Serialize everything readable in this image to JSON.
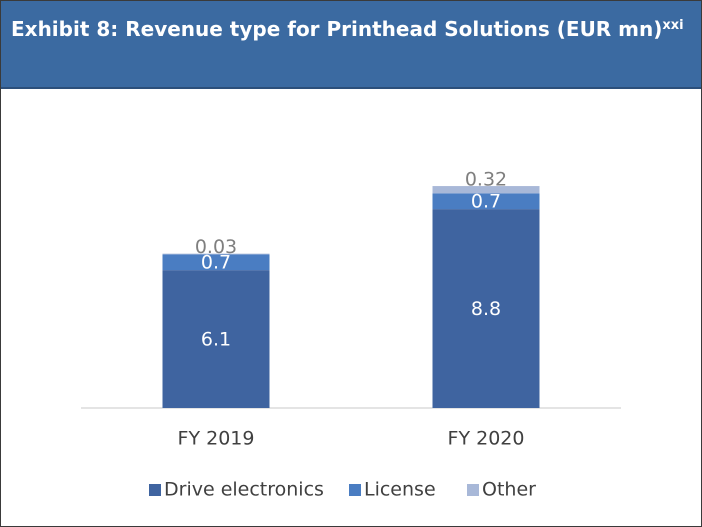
{
  "chart_data": {
    "type": "stacked_bar",
    "title": "Exhibit 8: Revenue type for Printhead Solutions (EUR mn)",
    "title_superscript": "xxi",
    "categories": [
      "FY 2019",
      "FY 2020"
    ],
    "series": [
      {
        "name": "Drive electronics",
        "color": "#3f64a0",
        "values": [
          6.1,
          8.8
        ]
      },
      {
        "name": "License",
        "color": "#4a7dc2",
        "values": [
          0.7,
          0.7
        ]
      },
      {
        "name": "Other",
        "color": "#a8b8d8",
        "values": [
          0.03,
          0.32
        ]
      }
    ],
    "legend": "bottom"
  }
}
